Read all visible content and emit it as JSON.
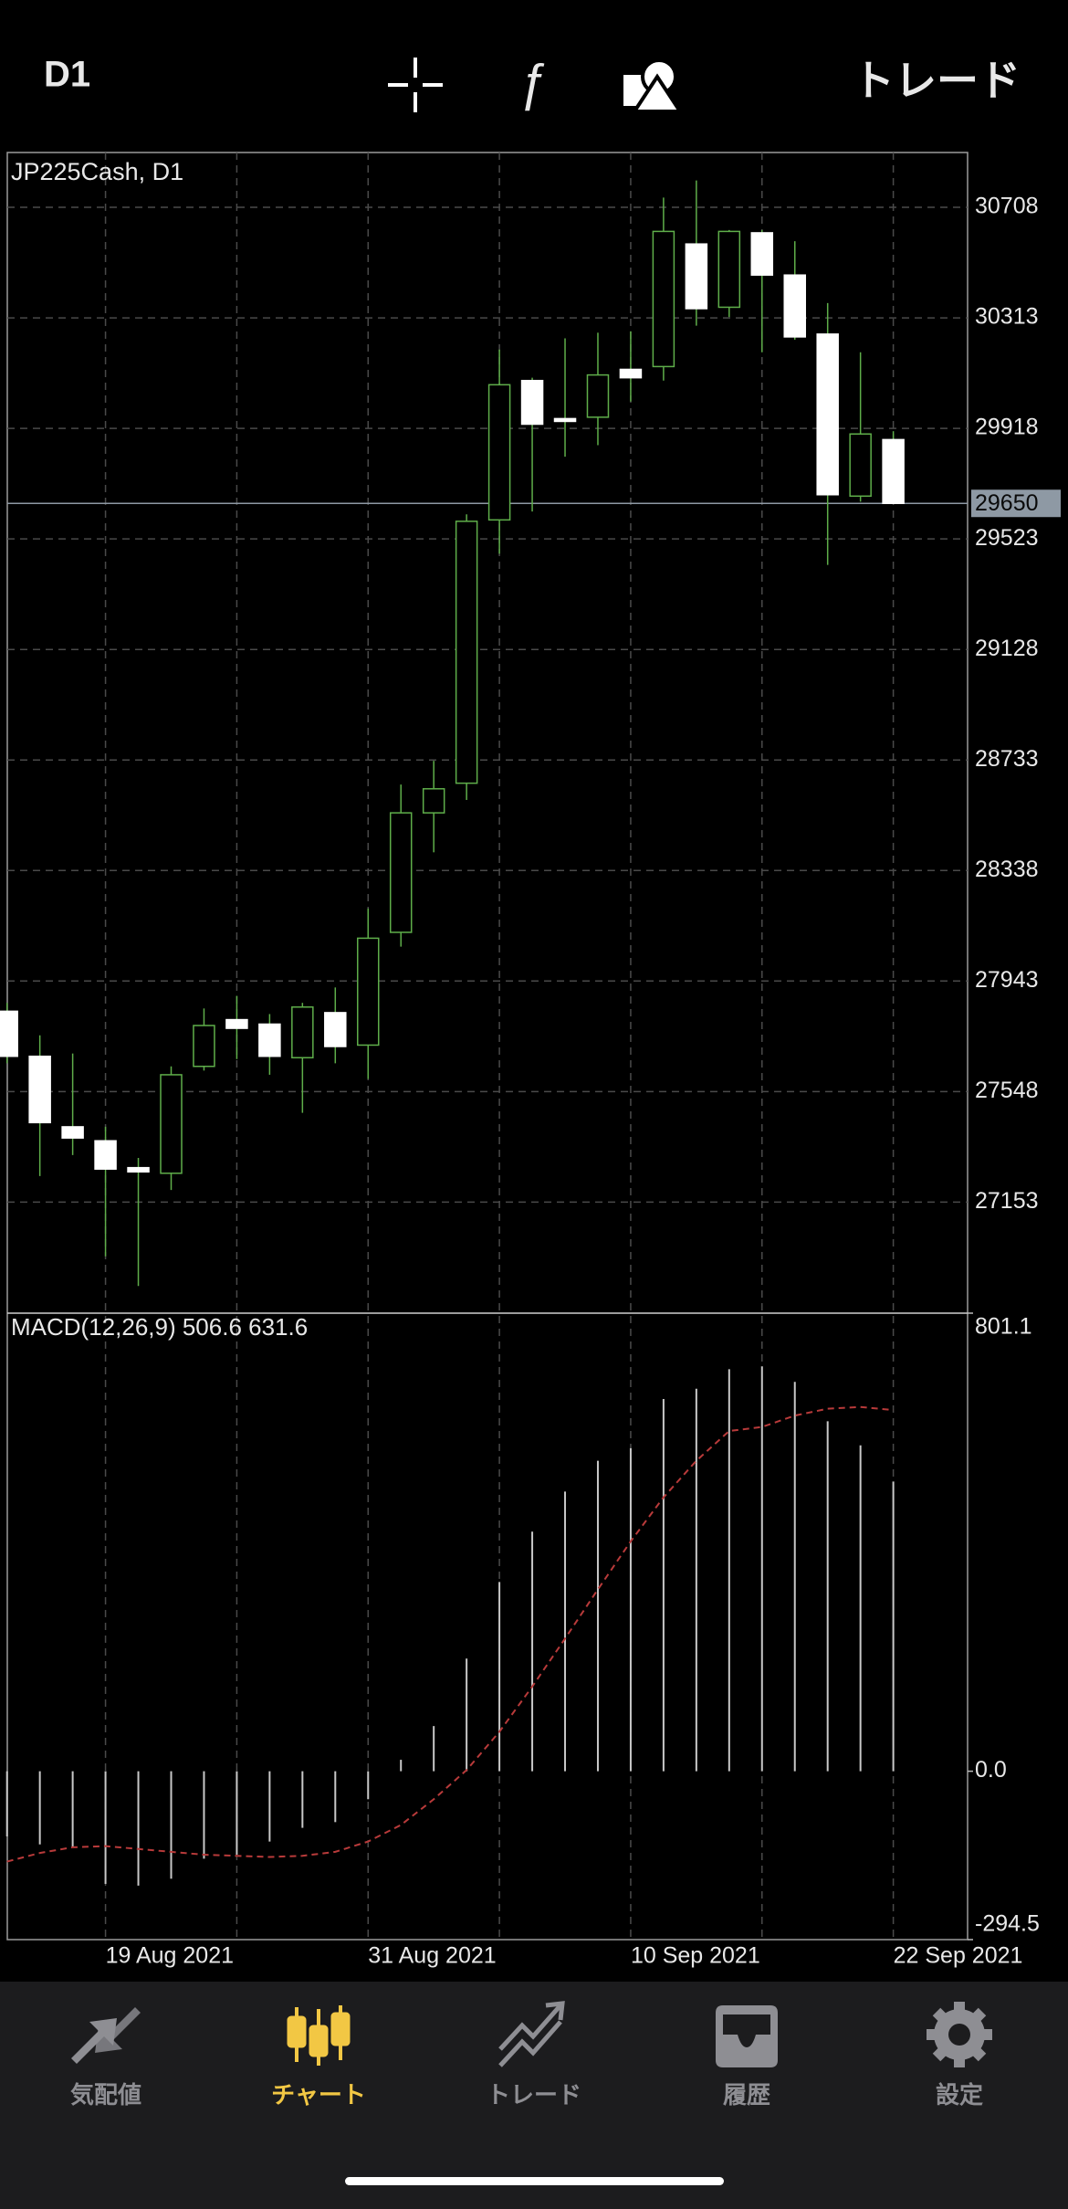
{
  "toolbar": {
    "timeframe": "D1",
    "trade": "トレード"
  },
  "chart_data": [
    {
      "type": "candlestick",
      "title": "JP225Cash, D1",
      "categories": [
        null,
        null,
        null,
        "19 Aug 2021",
        null,
        null,
        null,
        null,
        null,
        null,
        null,
        "31 Aug 2021",
        null,
        null,
        null,
        null,
        null,
        null,
        null,
        "10 Sep 2021",
        null,
        null,
        null,
        null,
        null,
        null,
        null,
        "22 Sep 2021"
      ],
      "open": [
        27835,
        27674,
        27422,
        27372,
        27276,
        27256,
        27638,
        27805,
        27789,
        27669,
        27830,
        27714,
        28117,
        28544,
        28650,
        29591,
        30089,
        29953,
        29958,
        30129,
        30139,
        30577,
        30351,
        30617,
        30466,
        30255,
        29676,
        29878
      ],
      "high": [
        27865,
        27749,
        27684,
        27422,
        27311,
        27638,
        27845,
        27890,
        27825,
        27865,
        27920,
        28202,
        28645,
        28730,
        29611,
        30200,
        30099,
        30240,
        30260,
        30265,
        30743,
        30804,
        30627,
        30627,
        30587,
        30366,
        30190,
        29908
      ],
      "low": [
        27649,
        27246,
        27321,
        26959,
        26853,
        27196,
        27623,
        27664,
        27608,
        27472,
        27649,
        27593,
        28066,
        28403,
        28590,
        29470,
        29621,
        29817,
        29858,
        30014,
        30089,
        30285,
        30316,
        30190,
        30235,
        29430,
        29656,
        29650
      ],
      "close": [
        27674,
        27437,
        27382,
        27271,
        27261,
        27608,
        27784,
        27774,
        27674,
        27850,
        27709,
        28096,
        28544,
        28630,
        29586,
        30074,
        29933,
        29943,
        30109,
        30099,
        30622,
        30346,
        30622,
        30466,
        30245,
        29681,
        29898,
        29650
      ],
      "up_color": "#5fae4a",
      "down_color": "#ffffff",
      "ylim": [
        26756,
        30904
      ],
      "yticks": [
        27153,
        27548,
        27943,
        28338,
        28733,
        29128,
        29523,
        29918,
        30313,
        30708
      ],
      "last_price": 29650,
      "grid": true
    },
    {
      "type": "macd",
      "title": "MACD(12,26,9) 506.6 631.6",
      "histogram": [
        -114,
        -128,
        -133,
        -197,
        -200,
        -188,
        -153,
        -146,
        -123,
        -99,
        -89,
        -49,
        20,
        79,
        197,
        331,
        419,
        489,
        543,
        565,
        651,
        669,
        703,
        708,
        681,
        612,
        570,
        506.6
      ],
      "signal": [
        -158,
        -143,
        -133,
        -131,
        -136,
        -141,
        -146,
        -148,
        -150,
        -148,
        -141,
        -123,
        -94,
        -49,
        2,
        69,
        148,
        232,
        318,
        402,
        479,
        543,
        595,
        602,
        622,
        634,
        637,
        631.6
      ],
      "histogram_color": "#c8c8c8",
      "signal_color": "#b83a3a",
      "ylim": [
        -294.5,
        801.1
      ],
      "yticks": [
        -294.5,
        {
          "value": 0,
          "label": "0.0"
        },
        801.1
      ]
    }
  ],
  "tabs": [
    {
      "label": "気配値",
      "active": false
    },
    {
      "label": "チャート",
      "active": true
    },
    {
      "label": "トレード",
      "active": false
    },
    {
      "label": "履歴",
      "active": false
    },
    {
      "label": "設定",
      "active": false
    }
  ]
}
